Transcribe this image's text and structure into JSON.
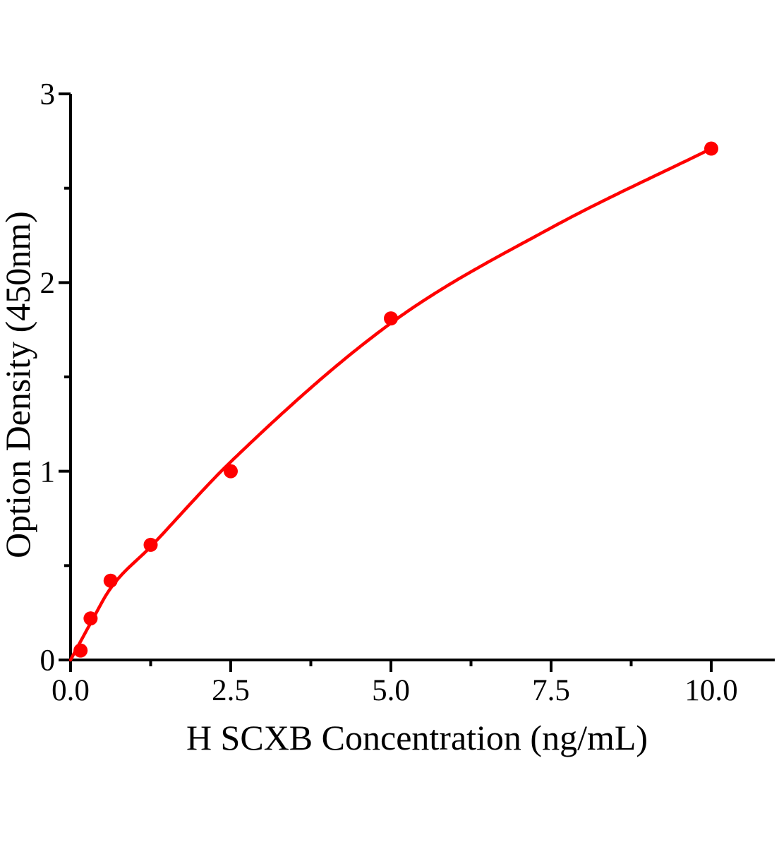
{
  "chart_data": {
    "type": "scatter",
    "title": "",
    "xlabel": "H SCXB Concentration（ng/mL）",
    "ylabel": "Option Density（450nm）",
    "xlim": [
      0,
      11
    ],
    "ylim": [
      0,
      3
    ],
    "grid": false,
    "legend": "none",
    "background_color": "#ffffff",
    "axis_color": "#000000",
    "accent_color": "#ff0000",
    "x_axis": {
      "major_ticks": [
        0.0,
        2.5,
        5.0,
        7.5,
        10.0
      ],
      "major_tick_labels": [
        "0.0",
        "2.5",
        "5.0",
        "7.5",
        "10.0"
      ],
      "minor_ticks": [
        1.25,
        3.75,
        6.25,
        8.75
      ]
    },
    "y_axis": {
      "major_ticks": [
        0,
        1,
        2,
        3
      ],
      "major_tick_labels": [
        "0",
        "1",
        "2",
        "3"
      ],
      "minor_ticks": [
        0.5,
        1.5,
        2.5
      ]
    },
    "series": [
      {
        "name": "standard-data-points",
        "kind": "scatter",
        "color": "#ff0000",
        "marker": "circle",
        "marker_radius": 10,
        "points": [
          {
            "x": 0.156,
            "y": 0.05
          },
          {
            "x": 0.3125,
            "y": 0.22
          },
          {
            "x": 0.625,
            "y": 0.42
          },
          {
            "x": 1.25,
            "y": 0.61
          },
          {
            "x": 2.5,
            "y": 1.0
          },
          {
            "x": 5.0,
            "y": 1.81
          },
          {
            "x": 10.0,
            "y": 2.71
          }
        ]
      },
      {
        "name": "fitted-curve",
        "kind": "line",
        "color": "#ff0000",
        "stroke_width": 4.5,
        "points": [
          {
            "x": 0,
            "y": 0
          },
          {
            "x": 0.3125,
            "y": 0.195
          },
          {
            "x": 0.625,
            "y": 0.38
          },
          {
            "x": 1.25,
            "y": 0.6
          },
          {
            "x": 2.5,
            "y": 1.05
          },
          {
            "x": 5.0,
            "y": 1.785
          },
          {
            "x": 7.5,
            "y": 2.29
          },
          {
            "x": 10.0,
            "y": 2.71
          }
        ]
      }
    ]
  }
}
